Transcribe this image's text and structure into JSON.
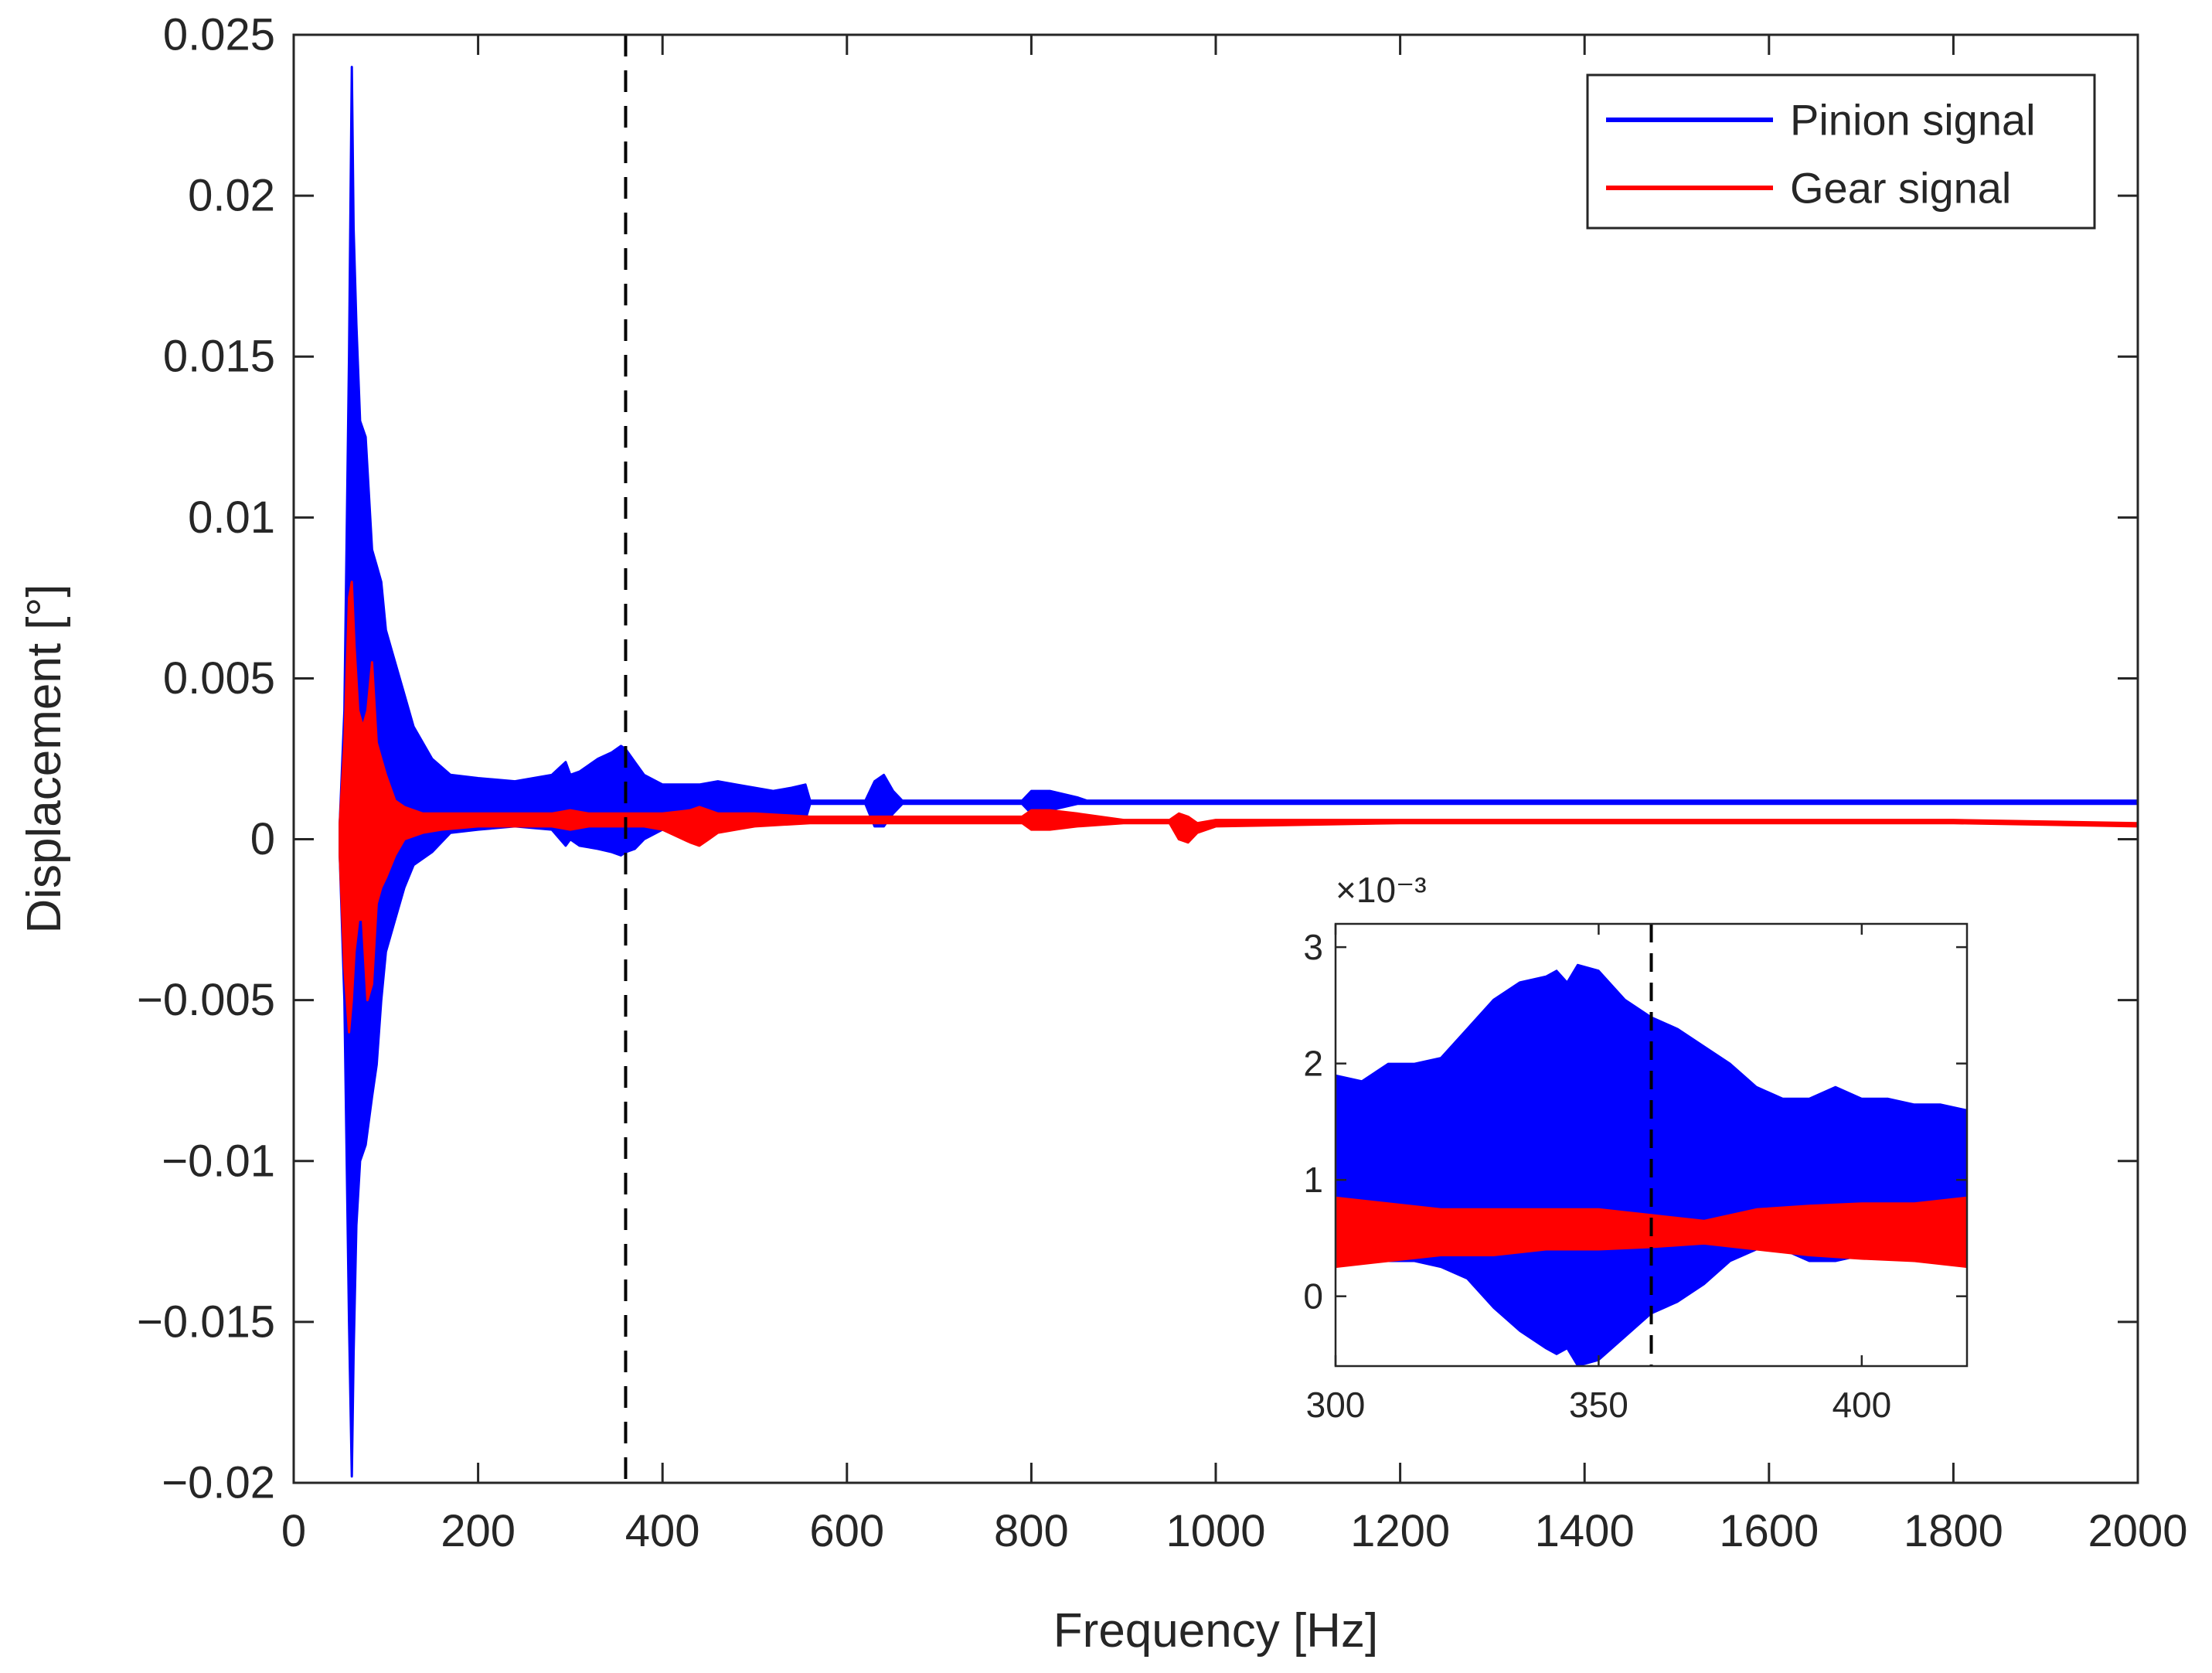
{
  "chart_data": [
    {
      "id": "main",
      "type": "line",
      "xlabel": "Frequency [Hz]",
      "ylabel": "Displacement [°]",
      "xlim": [
        0,
        2000
      ],
      "ylim": [
        -0.02,
        0.025
      ],
      "xticks": [
        0,
        200,
        400,
        600,
        800,
        1000,
        1200,
        1400,
        1600,
        1800,
        2000
      ],
      "xtick_labels": [
        "0",
        "200",
        "400",
        "600",
        "800",
        "1000",
        "1200",
        "1400",
        "1600",
        "1800",
        "2000"
      ],
      "yticks": [
        -0.02,
        -0.015,
        -0.01,
        -0.005,
        0,
        0.005,
        0.01,
        0.015,
        0.02,
        0.025
      ],
      "ytick_labels": [
        "−0.02",
        "−0.015",
        "−0.01",
        "−0.005",
        "0",
        "0.005",
        "0.01",
        "0.015",
        "0.02",
        "0.025"
      ],
      "vline_x": 360,
      "legend_position": "top-right",
      "series": [
        {
          "name": "Pinion signal",
          "color": "#0000ff",
          "x": [
            50,
            55,
            60,
            63,
            65,
            68,
            72,
            78,
            85,
            90,
            95,
            100,
            110,
            120,
            130,
            150,
            170,
            200,
            240,
            280,
            295,
            300,
            310,
            330,
            345,
            355,
            360,
            370,
            380,
            400,
            440,
            460,
            480,
            500,
            520,
            540,
            555,
            560,
            620,
            630,
            640,
            650,
            660,
            700,
            790,
            800,
            820,
            850,
            860,
            900,
            1000,
            1200,
            1400,
            1600,
            1800,
            2000
          ],
          "upper": [
            0.0005,
            0.004,
            0.015,
            0.024,
            0.019,
            0.016,
            0.013,
            0.0125,
            0.009,
            0.0085,
            0.008,
            0.0065,
            0.0055,
            0.0045,
            0.0035,
            0.0025,
            0.002,
            0.0019,
            0.0018,
            0.002,
            0.0024,
            0.002,
            0.0021,
            0.0025,
            0.0027,
            0.0029,
            0.0028,
            0.0024,
            0.002,
            0.0017,
            0.0017,
            0.0018,
            0.0017,
            0.0016,
            0.0015,
            0.0016,
            0.0017,
            0.0012,
            0.0012,
            0.0018,
            0.002,
            0.0015,
            0.0012,
            0.0012,
            0.0012,
            0.0015,
            0.0015,
            0.0013,
            0.0012,
            0.0012,
            0.0012,
            0.0012,
            0.0012,
            0.0012,
            0.0012,
            0.0012
          ],
          "lower": [
            -0.0005,
            -0.005,
            -0.015,
            -0.0198,
            -0.016,
            -0.012,
            -0.01,
            -0.0095,
            -0.008,
            -0.007,
            -0.005,
            -0.0035,
            -0.0025,
            -0.0015,
            -0.0008,
            -0.0004,
            0.0002,
            0.0003,
            0.0004,
            0.0003,
            -0.0002,
            0.0,
            -0.0002,
            -0.0003,
            -0.0004,
            -0.0005,
            -0.0004,
            -0.0003,
            0.0,
            0.0003,
            0.0004,
            0.0005,
            0.0005,
            0.0005,
            0.0006,
            0.0006,
            0.0006,
            0.0011,
            0.0011,
            0.0004,
            0.0004,
            0.0008,
            0.0011,
            0.0011,
            0.0011,
            0.0008,
            0.0009,
            0.0011,
            0.0011,
            0.0011,
            0.0011,
            0.0011,
            0.0011,
            0.0011,
            0.0011,
            0.0011
          ]
        },
        {
          "name": "Gear signal",
          "color": "#ff0000",
          "x": [
            50,
            55,
            60,
            63,
            66,
            70,
            75,
            80,
            85,
            90,
            95,
            100,
            110,
            120,
            140,
            160,
            200,
            280,
            300,
            320,
            350,
            380,
            400,
            430,
            440,
            450,
            460,
            500,
            560,
            600,
            700,
            790,
            800,
            820,
            850,
            900,
            950,
            960,
            970,
            980,
            1000,
            1200,
            1400,
            1600,
            1800,
            2000
          ],
          "upper": [
            0.0005,
            0.003,
            0.0075,
            0.008,
            0.006,
            0.004,
            0.0035,
            0.004,
            0.0055,
            0.003,
            0.0025,
            0.002,
            0.0012,
            0.001,
            0.0008,
            0.0008,
            0.0008,
            0.0008,
            0.0009,
            0.0008,
            0.0008,
            0.0008,
            0.0008,
            0.0009,
            0.001,
            0.0009,
            0.0008,
            0.0008,
            0.0007,
            0.0007,
            0.0007,
            0.0007,
            0.0009,
            0.0009,
            0.0008,
            0.0006,
            0.0006,
            0.0008,
            0.0007,
            0.0005,
            0.0006,
            0.0006,
            0.0006,
            0.0006,
            0.0006,
            0.0005
          ],
          "lower": [
            -0.0005,
            -0.004,
            -0.006,
            -0.005,
            -0.0035,
            -0.0025,
            -0.0025,
            -0.005,
            -0.0045,
            -0.002,
            -0.0015,
            -0.0012,
            -0.0005,
            0.0,
            0.0002,
            0.0003,
            0.0004,
            0.0004,
            0.0003,
            0.0004,
            0.0004,
            0.0004,
            0.0003,
            -0.0001,
            -0.0002,
            0.0,
            0.0002,
            0.0004,
            0.0005,
            0.0005,
            0.0005,
            0.0005,
            0.0003,
            0.0003,
            0.0004,
            0.0005,
            0.0005,
            0.0,
            -0.0001,
            0.0002,
            0.0004,
            0.0005,
            0.0005,
            0.0005,
            0.0005,
            0.0004
          ]
        }
      ]
    },
    {
      "id": "inset",
      "type": "line",
      "xlim": [
        300,
        420
      ],
      "ylim": [
        -0.6,
        3.2
      ],
      "y_exponent_label": "×10⁻³",
      "xticks": [
        300,
        350,
        400
      ],
      "xtick_labels": [
        "300",
        "350",
        "400"
      ],
      "yticks": [
        0,
        1,
        2,
        3
      ],
      "ytick_labels": [
        "0",
        "1",
        "2",
        "3"
      ],
      "vline_x": 360,
      "series": [
        {
          "name": "Pinion signal",
          "color": "#0000ff",
          "x": [
            300,
            305,
            310,
            315,
            320,
            325,
            330,
            335,
            340,
            342,
            344,
            346,
            350,
            355,
            360,
            365,
            370,
            375,
            380,
            385,
            390,
            395,
            400,
            405,
            410,
            415,
            420
          ],
          "upper": [
            1.9,
            1.85,
            2.0,
            2.0,
            2.05,
            2.3,
            2.55,
            2.7,
            2.75,
            2.8,
            2.7,
            2.85,
            2.8,
            2.55,
            2.4,
            2.3,
            2.15,
            2.0,
            1.8,
            1.7,
            1.7,
            1.8,
            1.7,
            1.7,
            1.65,
            1.65,
            1.6
          ],
          "lower": [
            0.3,
            0.35,
            0.3,
            0.3,
            0.25,
            0.15,
            -0.1,
            -0.3,
            -0.45,
            -0.5,
            -0.45,
            -0.6,
            -0.55,
            -0.35,
            -0.15,
            -0.05,
            0.1,
            0.3,
            0.4,
            0.4,
            0.3,
            0.3,
            0.35,
            0.35,
            0.3,
            0.3,
            0.3
          ]
        },
        {
          "name": "Gear signal",
          "color": "#ff0000",
          "x": [
            300,
            310,
            320,
            330,
            340,
            350,
            360,
            370,
            380,
            390,
            400,
            410,
            420
          ],
          "upper": [
            0.85,
            0.8,
            0.75,
            0.75,
            0.75,
            0.75,
            0.7,
            0.65,
            0.75,
            0.78,
            0.8,
            0.8,
            0.85
          ],
          "lower": [
            0.25,
            0.3,
            0.35,
            0.35,
            0.4,
            0.4,
            0.42,
            0.45,
            0.4,
            0.35,
            0.32,
            0.3,
            0.25
          ]
        }
      ]
    }
  ],
  "legend": {
    "items": [
      {
        "label": "Pinion signal",
        "color": "#0000ff"
      },
      {
        "label": "Gear signal",
        "color": "#ff0000"
      }
    ]
  }
}
